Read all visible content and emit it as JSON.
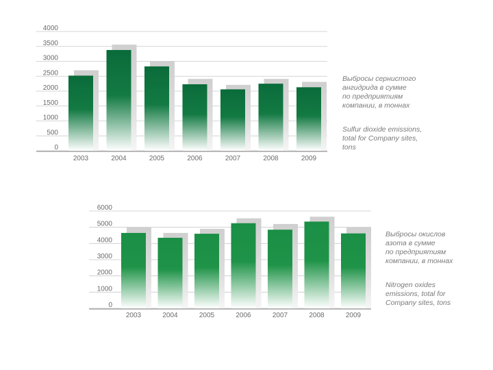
{
  "chart_data": [
    {
      "type": "bar",
      "name": "so2",
      "categories": [
        "2003",
        "2004",
        "2005",
        "2006",
        "2007",
        "2008",
        "2009"
      ],
      "yticks": [
        "0",
        "500",
        "1000",
        "1500",
        "2000",
        "2500",
        "3000",
        "3500",
        "4000"
      ],
      "ylim": [
        0,
        4000
      ],
      "series": [
        {
          "values": [
            2520,
            3380,
            2830,
            2230,
            2060,
            2250,
            2130
          ]
        },
        {
          "values": [
            2700,
            3560,
            3010,
            2410,
            2210,
            2410,
            2310
          ]
        }
      ],
      "caption_ru": "Выбросы сернистого\nангидрида в сумме\nпо предприятиям\nкомпании, в тоннах",
      "caption_en": "Sulfur dioxide emissions,\ntotal for Company sites,\ntons",
      "grid": true
    },
    {
      "type": "bar",
      "name": "nox",
      "categories": [
        "2003",
        "2004",
        "2005",
        "2006",
        "2007",
        "2008",
        "2009"
      ],
      "yticks": [
        "0",
        "1000",
        "2000",
        "3000",
        "4000",
        "5000",
        "6000"
      ],
      "ylim": [
        0,
        6000
      ],
      "series": [
        {
          "values": [
            4650,
            4350,
            4600,
            5250,
            4850,
            5350,
            4620
          ]
        },
        {
          "values": [
            5000,
            4650,
            4900,
            5550,
            5200,
            5650,
            5000
          ]
        }
      ],
      "caption_ru": "Выбросы окислов\nазота в сумме\nпо предприятиям\nкомпании, в тоннах",
      "caption_en": "Nitrogen oxides\nemissions, total for\nCompany sites, tons",
      "grid": true
    }
  ],
  "colors": {
    "bar_top": "#0a6b3a",
    "bar_top_2": "#1a8f45",
    "bar_bottom": "#ffffff",
    "shadow": "#d4d4d4",
    "grid": "#c8c8c8",
    "axis": "#9a9a9a"
  }
}
